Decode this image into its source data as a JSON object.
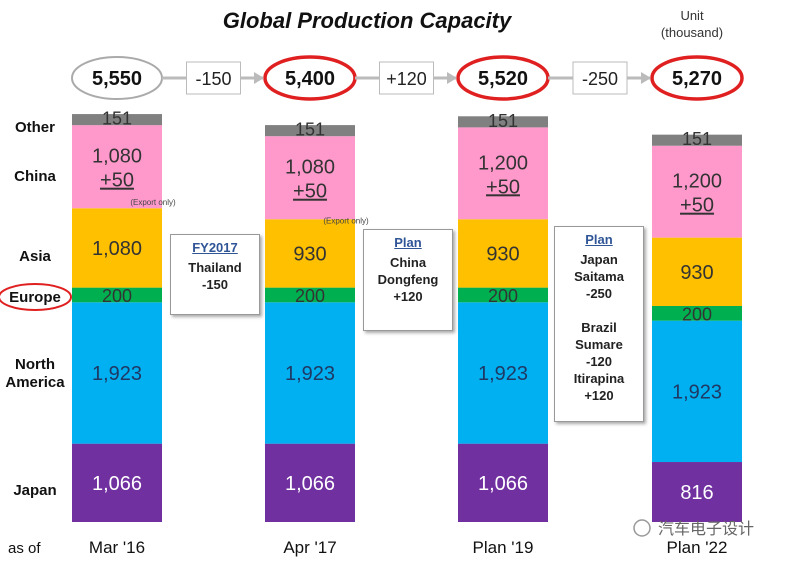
{
  "chart_data": {
    "type": "bar",
    "stacked": true,
    "title": "Global Production Capacity",
    "unit_label": [
      "Unit",
      "(thousand)"
    ],
    "x_prefix": "as of",
    "categories": [
      "Mar '16",
      "Apr '17",
      "Plan '19",
      "Plan '22"
    ],
    "totals": [
      "5,550",
      "5,400",
      "5,520",
      "5,270"
    ],
    "deltas": [
      "-150",
      "+120",
      "-250"
    ],
    "series": [
      {
        "name": "Japan",
        "color": "#7030a0",
        "values": [
          1066,
          1066,
          1066,
          816
        ],
        "labels": [
          "1,066",
          "1,066",
          "1,066",
          "816"
        ]
      },
      {
        "name": "North America",
        "color": "#00b0f0",
        "values": [
          1923,
          1923,
          1923,
          1923
        ],
        "labels": [
          "1,923",
          "1,923",
          "1,923",
          "1,923"
        ]
      },
      {
        "name": "Europe",
        "color": "#00b050",
        "values": [
          200,
          200,
          200,
          200
        ],
        "labels": [
          "200",
          "200",
          "200",
          "200"
        ]
      },
      {
        "name": "Asia",
        "color": "#ffc000",
        "values": [
          1080,
          930,
          930,
          930
        ],
        "labels": [
          "1,080",
          "930",
          "930",
          "930"
        ]
      },
      {
        "name": "China",
        "color": "#ff99cc",
        "values": [
          1130,
          1130,
          1250,
          1250
        ],
        "labels": [
          "1,080",
          "1,080",
          "1,200",
          "1,200"
        ],
        "extra": "+50"
      },
      {
        "name": "Other",
        "color": "#808080",
        "values": [
          151,
          151,
          151,
          151
        ],
        "labels": [
          "151",
          "151",
          "151",
          "151"
        ]
      }
    ],
    "series_axis_labels": [
      "Japan",
      "North\nAmerica",
      "Europe",
      "Asia",
      "China",
      "Other"
    ],
    "export_note": "(Export only)",
    "highlight_color": "#e02020"
  },
  "notes": [
    {
      "heading": "FY2017",
      "lines": [
        "Thailand",
        "-150"
      ]
    },
    {
      "heading": "Plan",
      "lines": [
        "China",
        "Dongfeng",
        "+120"
      ]
    },
    {
      "heading": "Plan",
      "lines": [
        "Japan",
        "Saitama",
        "-250",
        "",
        "Brazil",
        "Sumare",
        "-120",
        "Itirapina",
        "+120"
      ]
    }
  ],
  "watermark": "汽车电子设计"
}
